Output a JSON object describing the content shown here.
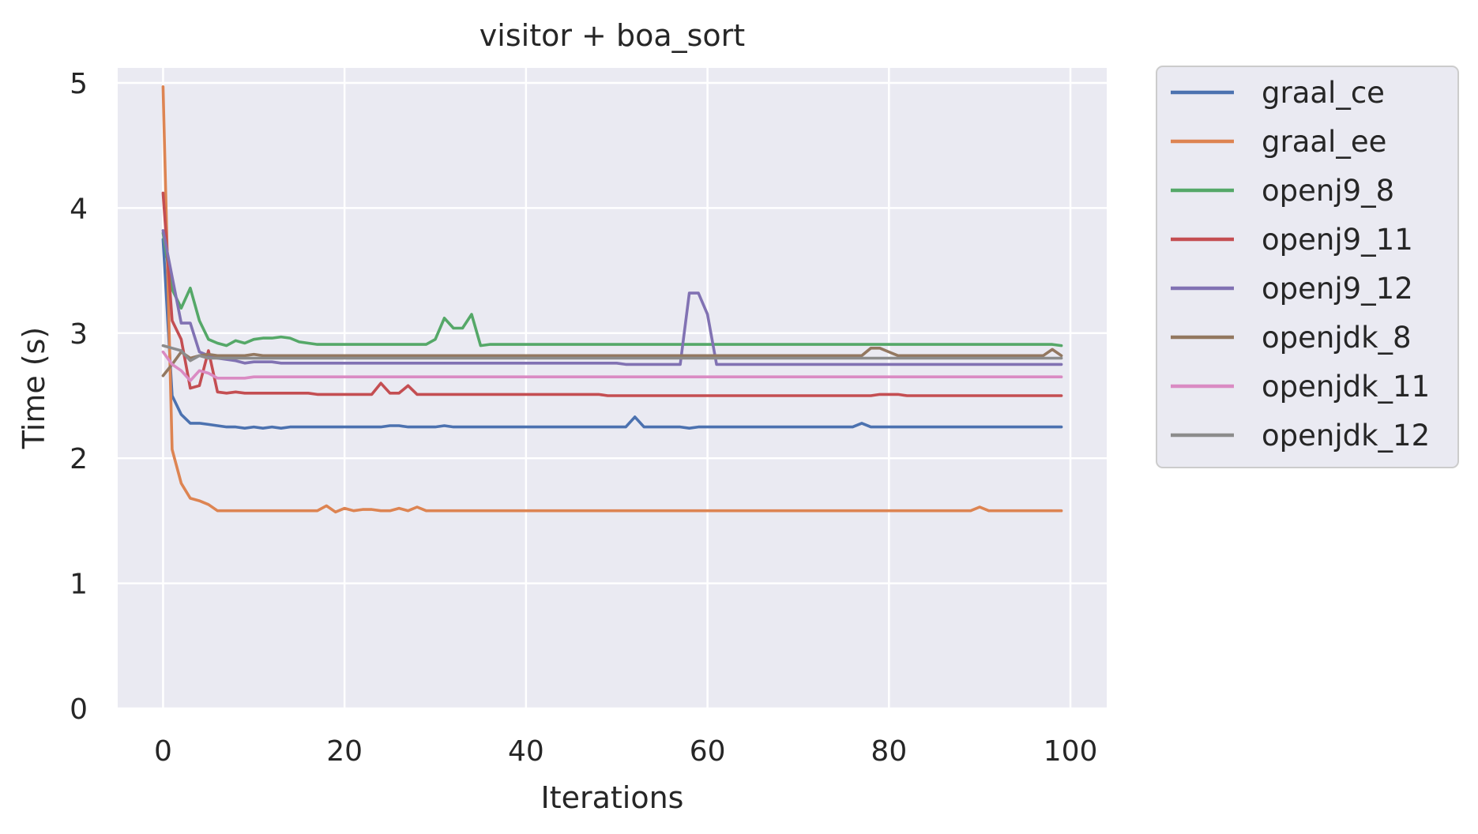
{
  "chart_data": {
    "type": "line",
    "title": "visitor + boa_sort",
    "xlabel": "Iterations",
    "ylabel": "Time (s)",
    "xlim": [
      -5,
      104
    ],
    "ylim": [
      0,
      5.12
    ],
    "xticks": [
      0,
      20,
      40,
      60,
      80,
      100
    ],
    "yticks": [
      0,
      1,
      2,
      3,
      4,
      5
    ],
    "grid": true,
    "legend_position": "outside-right",
    "background": "#eaeaf2",
    "series": [
      {
        "name": "graal_ce",
        "color": "#4c72b0",
        "values": [
          3.75,
          2.5,
          2.35,
          2.28,
          2.28,
          2.27,
          2.26,
          2.25,
          2.25,
          2.24,
          2.25,
          2.24,
          2.25,
          2.24,
          2.25,
          2.25,
          2.25,
          2.25,
          2.25,
          2.25,
          2.25,
          2.25,
          2.25,
          2.25,
          2.25,
          2.26,
          2.26,
          2.25,
          2.25,
          2.25,
          2.25,
          2.26,
          2.25,
          2.25,
          2.25,
          2.25,
          2.25,
          2.25,
          2.25,
          2.25,
          2.25,
          2.25,
          2.25,
          2.25,
          2.25,
          2.25,
          2.25,
          2.25,
          2.25,
          2.25,
          2.25,
          2.25,
          2.33,
          2.25,
          2.25,
          2.25,
          2.25,
          2.25,
          2.24,
          2.25,
          2.25,
          2.25,
          2.25,
          2.25,
          2.25,
          2.25,
          2.25,
          2.25,
          2.25,
          2.25,
          2.25,
          2.25,
          2.25,
          2.25,
          2.25,
          2.25,
          2.25,
          2.28,
          2.25,
          2.25,
          2.25,
          2.25,
          2.25,
          2.25,
          2.25,
          2.25,
          2.25,
          2.25,
          2.25,
          2.25,
          2.25,
          2.25,
          2.25,
          2.25,
          2.25,
          2.25,
          2.25,
          2.25,
          2.25,
          2.25
        ]
      },
      {
        "name": "graal_ee",
        "color": "#dd8452",
        "values": [
          4.97,
          2.07,
          1.8,
          1.68,
          1.66,
          1.63,
          1.58,
          1.58,
          1.58,
          1.58,
          1.58,
          1.58,
          1.58,
          1.58,
          1.58,
          1.58,
          1.58,
          1.58,
          1.62,
          1.57,
          1.6,
          1.58,
          1.59,
          1.59,
          1.58,
          1.58,
          1.6,
          1.58,
          1.61,
          1.58,
          1.58,
          1.58,
          1.58,
          1.58,
          1.58,
          1.58,
          1.58,
          1.58,
          1.58,
          1.58,
          1.58,
          1.58,
          1.58,
          1.58,
          1.58,
          1.58,
          1.58,
          1.58,
          1.58,
          1.58,
          1.58,
          1.58,
          1.58,
          1.58,
          1.58,
          1.58,
          1.58,
          1.58,
          1.58,
          1.58,
          1.58,
          1.58,
          1.58,
          1.58,
          1.58,
          1.58,
          1.58,
          1.58,
          1.58,
          1.58,
          1.58,
          1.58,
          1.58,
          1.58,
          1.58,
          1.58,
          1.58,
          1.58,
          1.58,
          1.58,
          1.58,
          1.58,
          1.58,
          1.58,
          1.58,
          1.58,
          1.58,
          1.58,
          1.58,
          1.58,
          1.61,
          1.58,
          1.58,
          1.58,
          1.58,
          1.58,
          1.58,
          1.58,
          1.58,
          1.58
        ]
      },
      {
        "name": "openj9_8",
        "color": "#55a868",
        "values": [
          3.8,
          3.35,
          3.2,
          3.36,
          3.1,
          2.95,
          2.92,
          2.9,
          2.94,
          2.92,
          2.95,
          2.96,
          2.96,
          2.97,
          2.96,
          2.93,
          2.92,
          2.91,
          2.91,
          2.91,
          2.91,
          2.91,
          2.91,
          2.91,
          2.91,
          2.91,
          2.91,
          2.91,
          2.91,
          2.91,
          2.95,
          3.12,
          3.04,
          3.04,
          3.15,
          2.9,
          2.91,
          2.91,
          2.91,
          2.91,
          2.91,
          2.91,
          2.91,
          2.91,
          2.91,
          2.91,
          2.91,
          2.91,
          2.91,
          2.91,
          2.91,
          2.91,
          2.91,
          2.91,
          2.91,
          2.91,
          2.91,
          2.91,
          2.91,
          2.91,
          2.91,
          2.91,
          2.91,
          2.91,
          2.91,
          2.91,
          2.91,
          2.91,
          2.91,
          2.91,
          2.91,
          2.91,
          2.91,
          2.91,
          2.91,
          2.91,
          2.91,
          2.91,
          2.91,
          2.91,
          2.91,
          2.91,
          2.91,
          2.91,
          2.91,
          2.91,
          2.91,
          2.91,
          2.91,
          2.91,
          2.91,
          2.91,
          2.91,
          2.91,
          2.91,
          2.91,
          2.91,
          2.91,
          2.91,
          2.9
        ]
      },
      {
        "name": "openj9_11",
        "color": "#c44e52",
        "values": [
          4.12,
          3.1,
          2.95,
          2.56,
          2.58,
          2.86,
          2.53,
          2.52,
          2.53,
          2.52,
          2.52,
          2.52,
          2.52,
          2.52,
          2.52,
          2.52,
          2.52,
          2.51,
          2.51,
          2.51,
          2.51,
          2.51,
          2.51,
          2.51,
          2.6,
          2.52,
          2.52,
          2.58,
          2.51,
          2.51,
          2.51,
          2.51,
          2.51,
          2.51,
          2.51,
          2.51,
          2.51,
          2.51,
          2.51,
          2.51,
          2.51,
          2.51,
          2.51,
          2.51,
          2.51,
          2.51,
          2.51,
          2.51,
          2.51,
          2.5,
          2.5,
          2.5,
          2.5,
          2.5,
          2.5,
          2.5,
          2.5,
          2.5,
          2.5,
          2.5,
          2.5,
          2.5,
          2.5,
          2.5,
          2.5,
          2.5,
          2.5,
          2.5,
          2.5,
          2.5,
          2.5,
          2.5,
          2.5,
          2.5,
          2.5,
          2.5,
          2.5,
          2.5,
          2.5,
          2.51,
          2.51,
          2.51,
          2.5,
          2.5,
          2.5,
          2.5,
          2.5,
          2.5,
          2.5,
          2.5,
          2.5,
          2.5,
          2.5,
          2.5,
          2.5,
          2.5,
          2.5,
          2.5,
          2.5,
          2.5
        ]
      },
      {
        "name": "openj9_12",
        "color": "#8172b3",
        "values": [
          3.82,
          3.45,
          3.08,
          3.08,
          2.85,
          2.82,
          2.8,
          2.79,
          2.78,
          2.76,
          2.77,
          2.77,
          2.77,
          2.76,
          2.76,
          2.76,
          2.76,
          2.76,
          2.76,
          2.76,
          2.76,
          2.76,
          2.76,
          2.76,
          2.76,
          2.76,
          2.76,
          2.76,
          2.76,
          2.76,
          2.76,
          2.76,
          2.76,
          2.76,
          2.76,
          2.76,
          2.76,
          2.76,
          2.76,
          2.76,
          2.76,
          2.76,
          2.76,
          2.76,
          2.76,
          2.76,
          2.76,
          2.76,
          2.76,
          2.76,
          2.76,
          2.75,
          2.75,
          2.75,
          2.75,
          2.75,
          2.75,
          2.75,
          3.32,
          3.32,
          3.15,
          2.75,
          2.75,
          2.75,
          2.75,
          2.75,
          2.75,
          2.75,
          2.75,
          2.75,
          2.75,
          2.75,
          2.75,
          2.75,
          2.75,
          2.75,
          2.75,
          2.75,
          2.75,
          2.75,
          2.75,
          2.75,
          2.75,
          2.75,
          2.75,
          2.75,
          2.75,
          2.75,
          2.75,
          2.75,
          2.75,
          2.75,
          2.75,
          2.75,
          2.75,
          2.75,
          2.75,
          2.75,
          2.75,
          2.75
        ]
      },
      {
        "name": "openjdk_8",
        "color": "#937860",
        "values": [
          2.66,
          2.75,
          2.85,
          2.8,
          2.82,
          2.83,
          2.82,
          2.82,
          2.82,
          2.82,
          2.83,
          2.82,
          2.82,
          2.82,
          2.82,
          2.82,
          2.82,
          2.82,
          2.82,
          2.82,
          2.82,
          2.82,
          2.82,
          2.82,
          2.82,
          2.82,
          2.82,
          2.82,
          2.82,
          2.82,
          2.82,
          2.82,
          2.82,
          2.82,
          2.82,
          2.82,
          2.82,
          2.82,
          2.82,
          2.82,
          2.82,
          2.82,
          2.82,
          2.82,
          2.82,
          2.82,
          2.82,
          2.82,
          2.82,
          2.82,
          2.82,
          2.82,
          2.82,
          2.82,
          2.82,
          2.82,
          2.82,
          2.82,
          2.82,
          2.82,
          2.82,
          2.82,
          2.82,
          2.82,
          2.82,
          2.82,
          2.82,
          2.82,
          2.82,
          2.82,
          2.82,
          2.82,
          2.82,
          2.82,
          2.82,
          2.82,
          2.82,
          2.82,
          2.88,
          2.88,
          2.85,
          2.82,
          2.82,
          2.82,
          2.82,
          2.82,
          2.82,
          2.82,
          2.82,
          2.82,
          2.82,
          2.82,
          2.82,
          2.82,
          2.82,
          2.82,
          2.82,
          2.82,
          2.87,
          2.82
        ]
      },
      {
        "name": "openjdk_11",
        "color": "#da8bc3",
        "values": [
          2.85,
          2.75,
          2.7,
          2.62,
          2.7,
          2.68,
          2.64,
          2.64,
          2.64,
          2.64,
          2.65,
          2.65,
          2.65,
          2.65,
          2.65,
          2.65,
          2.65,
          2.65,
          2.65,
          2.65,
          2.65,
          2.65,
          2.65,
          2.65,
          2.65,
          2.65,
          2.65,
          2.65,
          2.65,
          2.65,
          2.65,
          2.65,
          2.65,
          2.65,
          2.65,
          2.65,
          2.65,
          2.65,
          2.65,
          2.65,
          2.65,
          2.65,
          2.65,
          2.65,
          2.65,
          2.65,
          2.65,
          2.65,
          2.65,
          2.65,
          2.65,
          2.65,
          2.65,
          2.65,
          2.65,
          2.65,
          2.65,
          2.65,
          2.65,
          2.65,
          2.65,
          2.65,
          2.65,
          2.65,
          2.65,
          2.65,
          2.65,
          2.65,
          2.65,
          2.65,
          2.65,
          2.65,
          2.65,
          2.65,
          2.65,
          2.65,
          2.65,
          2.65,
          2.65,
          2.65,
          2.65,
          2.65,
          2.65,
          2.65,
          2.65,
          2.65,
          2.65,
          2.65,
          2.65,
          2.65,
          2.65,
          2.65,
          2.65,
          2.65,
          2.65,
          2.65,
          2.65,
          2.65,
          2.65,
          2.65
        ]
      },
      {
        "name": "openjdk_12",
        "color": "#8c8c8c",
        "values": [
          2.9,
          2.88,
          2.86,
          2.78,
          2.82,
          2.8,
          2.8,
          2.8,
          2.8,
          2.8,
          2.8,
          2.8,
          2.8,
          2.8,
          2.8,
          2.8,
          2.8,
          2.8,
          2.8,
          2.8,
          2.8,
          2.8,
          2.8,
          2.8,
          2.8,
          2.8,
          2.8,
          2.8,
          2.8,
          2.8,
          2.8,
          2.8,
          2.8,
          2.8,
          2.8,
          2.8,
          2.8,
          2.8,
          2.8,
          2.8,
          2.8,
          2.8,
          2.8,
          2.8,
          2.8,
          2.8,
          2.8,
          2.8,
          2.8,
          2.8,
          2.8,
          2.8,
          2.8,
          2.8,
          2.8,
          2.8,
          2.8,
          2.8,
          2.8,
          2.8,
          2.8,
          2.8,
          2.8,
          2.8,
          2.8,
          2.8,
          2.8,
          2.8,
          2.8,
          2.8,
          2.8,
          2.8,
          2.8,
          2.8,
          2.8,
          2.8,
          2.8,
          2.8,
          2.8,
          2.8,
          2.8,
          2.8,
          2.8,
          2.8,
          2.8,
          2.8,
          2.8,
          2.8,
          2.8,
          2.8,
          2.8,
          2.8,
          2.8,
          2.8,
          2.8,
          2.8,
          2.8,
          2.8,
          2.8,
          2.8
        ]
      }
    ]
  }
}
